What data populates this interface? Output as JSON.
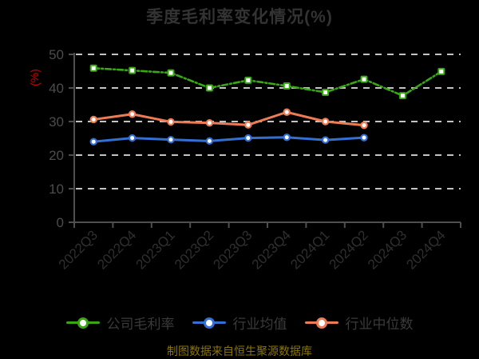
{
  "chart": {
    "title": "季度毛利率变化情况(%)",
    "y_axis_label": "(%)",
    "caption": "制图数据来自恒生聚源数据库"
  },
  "colors": {
    "background": "#000000",
    "title": "#333333",
    "axis": "#4f4f4f",
    "grid": "#c3c3c3",
    "y_tick_label": "#4c4c4c",
    "x_tick_label": "#2f2f2f",
    "ylabel_red": "#cf0000",
    "legend_text": "#3a3a3a",
    "caption": "#8a7408",
    "marker_fill": "#ffffff",
    "series_company": "#3aa616",
    "series_industry_mean": "#3470d2",
    "series_industry_median": "#ec7c55"
  },
  "chart_data": {
    "type": "line",
    "title": "季度毛利率变化情况(%)",
    "xlabel": "",
    "ylabel": "(%)",
    "ylim": [
      0,
      50
    ],
    "y_ticks": [
      0,
      10,
      20,
      30,
      40,
      50
    ],
    "grid": "horizontal dashed white lines at 10,20,30,40,50",
    "legend_position": "bottom",
    "categories": [
      "2022Q3",
      "2022Q4",
      "2023Q1",
      "2023Q2",
      "2023Q3",
      "2023Q4",
      "2024Q1",
      "2024Q2",
      "2024Q3",
      "2024Q4"
    ],
    "series": [
      {
        "name": "公司毛利率",
        "color": "#3aa616",
        "line_style": "dash-dot",
        "marker": "square",
        "values": [
          45.9,
          45.2,
          44.5,
          40.0,
          42.3,
          40.6,
          38.7,
          42.6,
          37.7,
          44.9
        ]
      },
      {
        "name": "行业均值",
        "color": "#3470d2",
        "line_style": "solid",
        "marker": "circle",
        "values": [
          24.0,
          25.1,
          24.6,
          24.2,
          25.1,
          25.3,
          24.5,
          25.2,
          null,
          null
        ]
      },
      {
        "name": "行业中位数",
        "color": "#ec7c55",
        "line_style": "solid",
        "marker": "circle",
        "values": [
          30.6,
          32.2,
          29.9,
          29.6,
          29.0,
          32.8,
          30.0,
          28.9,
          null,
          null
        ]
      }
    ]
  }
}
